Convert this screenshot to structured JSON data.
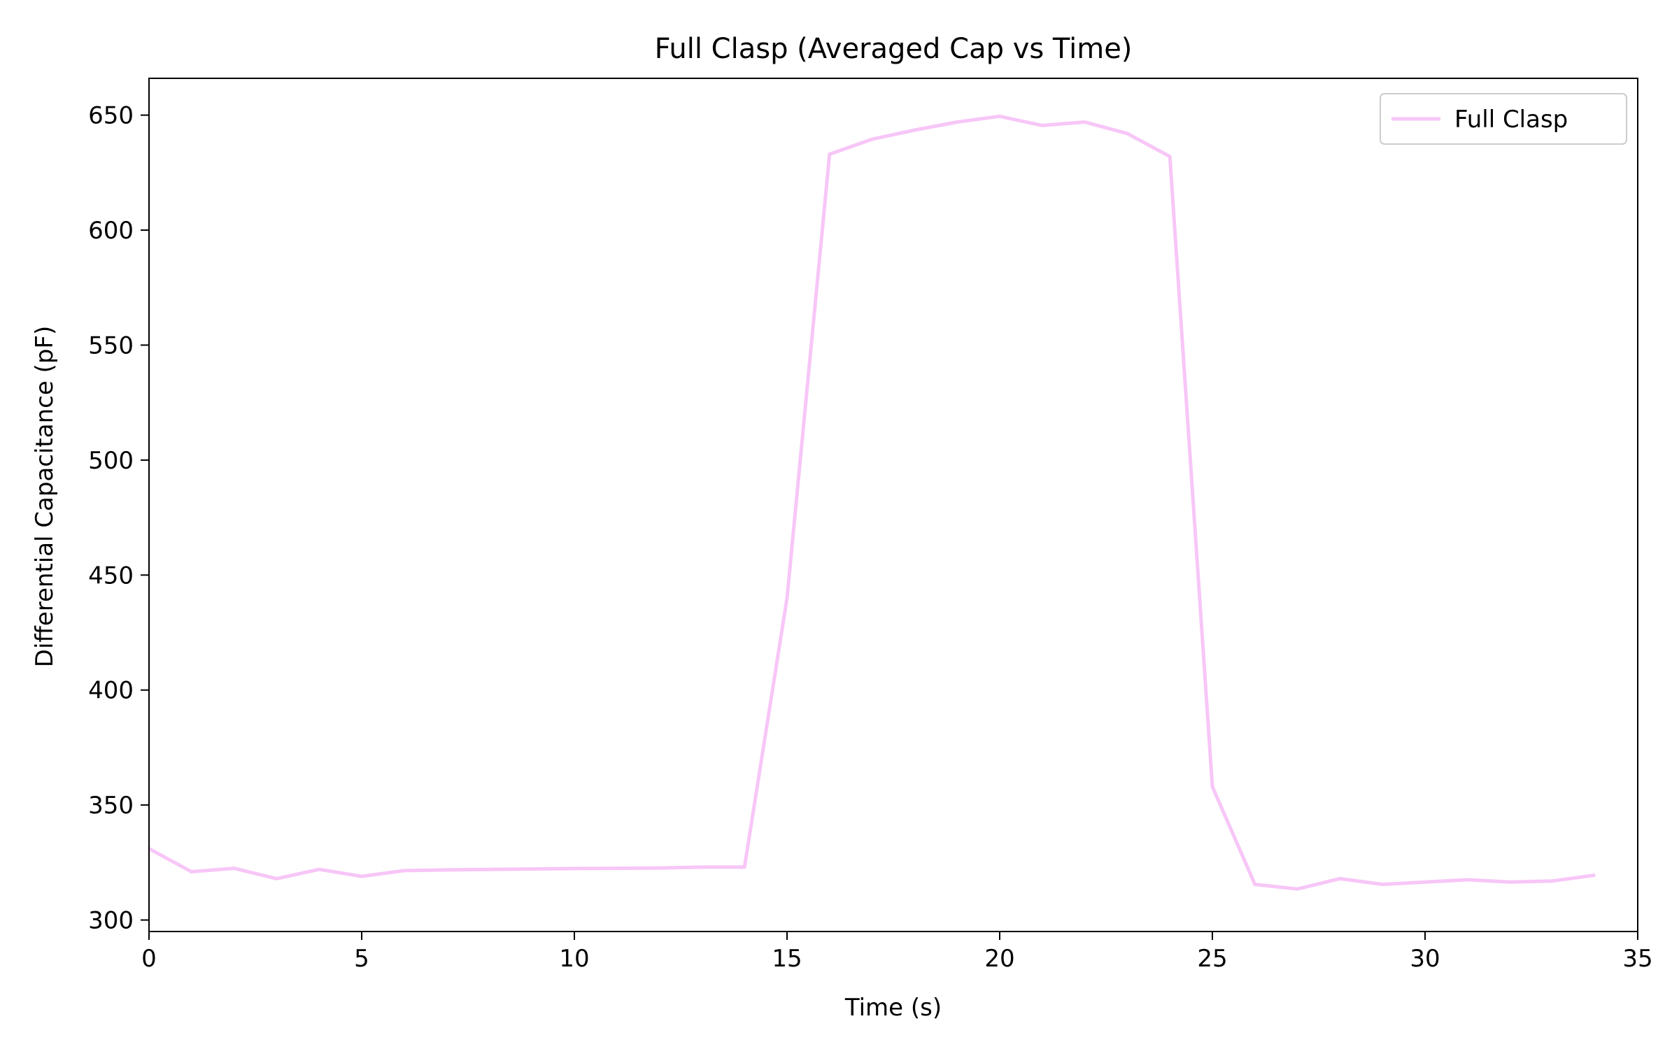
{
  "chart_data": {
    "type": "line",
    "title": "Full Clasp (Averaged Cap vs Time)",
    "xlabel": "Time (s)",
    "ylabel": "Differential Capacitance (pF)",
    "xlim": [
      0,
      35
    ],
    "ylim": [
      295,
      666
    ],
    "xticks": [
      0,
      5,
      10,
      15,
      20,
      25,
      30,
      35
    ],
    "yticks": [
      300,
      350,
      400,
      450,
      500,
      550,
      600,
      650
    ],
    "grid": false,
    "legend": "top-right",
    "series": [
      {
        "name": "Full Clasp",
        "color": "#f7c6f7",
        "x": [
          0,
          1,
          2,
          3,
          4,
          5,
          6,
          7,
          8,
          9,
          10,
          11,
          12,
          13,
          14,
          15,
          16,
          17,
          18,
          19,
          20,
          21,
          22,
          23,
          24,
          25,
          26,
          27,
          28,
          29,
          30,
          31,
          32,
          33,
          34
        ],
        "y": [
          331,
          321,
          322.5,
          318,
          322,
          319,
          321.5,
          321.8,
          322,
          322.2,
          322.4,
          322.5,
          322.6,
          323,
          323,
          440,
          633,
          639.5,
          643.5,
          647,
          649.5,
          645.5,
          647,
          642,
          632,
          358,
          315.5,
          313.5,
          318,
          315.5,
          316.5,
          317.5,
          316.5,
          317,
          319.5
        ]
      }
    ]
  }
}
